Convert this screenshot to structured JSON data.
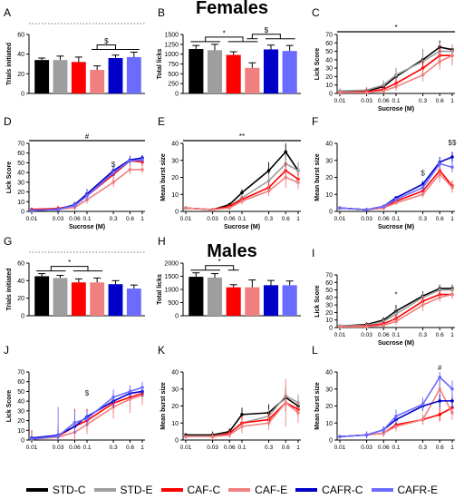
{
  "headings": {
    "females": "Females",
    "males": "Males"
  },
  "legend": [
    {
      "key": "stdc",
      "label": "STD-C",
      "color": "#000000"
    },
    {
      "key": "stde",
      "label": "STD-E",
      "color": "#9e9e9e"
    },
    {
      "key": "cafc",
      "label": "CAF-C",
      "color": "#ff0000"
    },
    {
      "key": "cafe",
      "label": "CAF-E",
      "color": "#f08080"
    },
    {
      "key": "cafrc",
      "label": "CAFR-C",
      "color": "#0000c8"
    },
    {
      "key": "cafre",
      "label": "CAFR-E",
      "color": "#6b6bff"
    }
  ],
  "chart_data": [
    {
      "panel": "A",
      "type": "bar",
      "ylabel": "Trials initiated",
      "ylim": [
        0,
        60
      ],
      "yticks": [
        0,
        20,
        40,
        60
      ],
      "reference_line": 62,
      "categories": [
        "STD-C",
        "STD-E",
        "CAF-C",
        "CAF-E",
        "CAFR-C",
        "CAFR-E"
      ],
      "values": [
        34,
        34,
        32,
        24,
        36,
        37
      ],
      "errors": [
        2,
        4,
        5,
        4,
        3,
        5
      ],
      "significance": [
        {
          "label": "$",
          "groups": [
            [
              3,
              4,
              5
            ],
            [
              3
            ]
          ]
        }
      ]
    },
    {
      "panel": "B",
      "type": "bar",
      "ylabel": "Total licks",
      "ylim": [
        0,
        1500
      ],
      "yticks": [
        0,
        250,
        500,
        750,
        1000,
        1250,
        1500
      ],
      "categories": [
        "STD-C",
        "STD-E",
        "CAF-C",
        "CAF-E",
        "CAFR-C",
        "CAFR-E"
      ],
      "values": [
        1130,
        1100,
        980,
        650,
        1120,
        1080
      ],
      "errors": [
        90,
        150,
        80,
        130,
        110,
        140
      ],
      "significance": [
        {
          "label": "*",
          "groups": [
            [
              0,
              1
            ],
            [
              2,
              3
            ]
          ]
        },
        {
          "label": "$",
          "groups": [
            [
              3
            ],
            [
              4,
              5
            ]
          ]
        }
      ]
    },
    {
      "panel": "C",
      "type": "line",
      "ylabel": "Lick Score",
      "xlabel": "Sucrose (M)",
      "ylim": [
        0,
        70
      ],
      "yticks": [
        0,
        10,
        20,
        30,
        40,
        50,
        60,
        70
      ],
      "x": [
        0.01,
        0.03,
        0.06,
        0.1,
        0.3,
        0.6,
        1
      ],
      "xtick_labels": [
        "0.01",
        "0.03",
        "0.06",
        "0.1",
        "0.3",
        "0.6",
        "1"
      ],
      "top_bar": {
        "label": "*"
      },
      "series": [
        {
          "key": "stdc",
          "values": [
            2,
            3,
            8,
            20,
            40,
            55,
            52
          ],
          "errors": [
            3,
            4,
            5,
            10,
            12,
            8,
            6
          ]
        },
        {
          "key": "stde",
          "values": [
            3,
            4,
            10,
            22,
            38,
            50,
            50
          ],
          "errors": [
            3,
            4,
            6,
            8,
            15,
            10,
            8
          ]
        },
        {
          "key": "cafc",
          "values": [
            1,
            2,
            5,
            12,
            30,
            45,
            45
          ],
          "errors": [
            2,
            3,
            4,
            6,
            10,
            12,
            10
          ]
        },
        {
          "key": "cafe",
          "values": [
            1,
            1,
            3,
            8,
            22,
            38,
            45
          ],
          "errors": [
            2,
            2,
            3,
            5,
            8,
            10,
            12
          ]
        }
      ]
    },
    {
      "panel": "D",
      "type": "line",
      "ylabel": "Lick Score",
      "xlabel": "Sucrose (M)",
      "ylim": [
        0,
        70
      ],
      "yticks": [
        0,
        10,
        20,
        30,
        40,
        50,
        60,
        70
      ],
      "x": [
        0.01,
        0.03,
        0.06,
        0.1,
        0.3,
        0.6,
        1
      ],
      "xtick_labels": [
        "0.01",
        "0.03",
        "0.06",
        "0.1",
        "0.3",
        "0.6",
        "1"
      ],
      "top_bar": {
        "label": "#"
      },
      "point_annotations": [
        {
          "label": "$",
          "x": 0.3,
          "y": 44
        }
      ],
      "series": [
        {
          "key": "cafc",
          "values": [
            2,
            3,
            6,
            16,
            38,
            52,
            51
          ],
          "errors": [
            2,
            3,
            3,
            5,
            6,
            5,
            4
          ]
        },
        {
          "key": "cafe",
          "values": [
            1,
            2,
            4,
            12,
            30,
            43,
            43
          ],
          "errors": [
            2,
            2,
            3,
            4,
            5,
            5,
            4
          ]
        },
        {
          "key": "cafrc",
          "values": [
            1,
            2,
            7,
            18,
            42,
            53,
            55
          ],
          "errors": [
            2,
            2,
            3,
            5,
            5,
            4,
            3
          ]
        },
        {
          "key": "cafre",
          "values": [
            1,
            2,
            6,
            16,
            40,
            52,
            53
          ],
          "errors": [
            2,
            2,
            3,
            5,
            5,
            4,
            3
          ]
        }
      ]
    },
    {
      "panel": "E",
      "type": "line",
      "ylabel": "Mean burst size",
      "xlabel": "Sucrose (M)",
      "ylim": [
        0,
        40
      ],
      "yticks": [
        0,
        10,
        20,
        30,
        40
      ],
      "x": [
        0.01,
        0.03,
        0.06,
        0.1,
        0.3,
        0.6,
        1
      ],
      "xtick_labels": [
        "0.01",
        "0.03",
        "0.06",
        "0.1",
        "0.3",
        "0.6",
        "1"
      ],
      "top_bar": {
        "label": "**"
      },
      "series": [
        {
          "key": "stdc",
          "values": [
            2,
            1,
            4,
            11,
            24,
            35,
            24
          ],
          "errors": [
            1,
            1,
            1,
            2,
            5,
            5,
            4
          ]
        },
        {
          "key": "stde",
          "values": [
            2,
            1,
            3,
            8,
            18,
            28,
            24
          ],
          "errors": [
            1,
            1,
            1,
            2,
            4,
            6,
            5
          ]
        },
        {
          "key": "cafc",
          "values": [
            2,
            1,
            3,
            7,
            14,
            24,
            19
          ],
          "errors": [
            1,
            1,
            1,
            2,
            3,
            5,
            4
          ]
        },
        {
          "key": "cafe",
          "values": [
            2,
            1,
            2,
            6,
            12,
            20,
            17
          ],
          "errors": [
            1,
            1,
            1,
            2,
            3,
            6,
            4
          ]
        }
      ]
    },
    {
      "panel": "F",
      "type": "line",
      "ylabel": "Mean burst size",
      "xlabel": "Sucrose (M)",
      "ylim": [
        0,
        40
      ],
      "yticks": [
        0,
        10,
        20,
        30,
        40
      ],
      "x": [
        0.01,
        0.03,
        0.06,
        0.1,
        0.3,
        0.6,
        1
      ],
      "xtick_labels": [
        "0.01",
        "0.03",
        "0.06",
        "0.1",
        "0.3",
        "0.6",
        "1"
      ],
      "point_annotations": [
        {
          "label": "$",
          "x": 0.3,
          "y": 20
        },
        {
          "label": "$$",
          "x": 1,
          "y": 38
        }
      ],
      "series": [
        {
          "key": "cafc",
          "values": [
            2,
            1,
            2,
            6,
            12,
            24,
            15
          ],
          "errors": [
            1,
            1,
            1,
            1,
            2,
            5,
            3
          ]
        },
        {
          "key": "cafe",
          "values": [
            2,
            1,
            2,
            5,
            10,
            22,
            14
          ],
          "errors": [
            1,
            1,
            1,
            1,
            2,
            5,
            3
          ]
        },
        {
          "key": "cafrc",
          "values": [
            2,
            1,
            3,
            8,
            16,
            29,
            32
          ],
          "errors": [
            1,
            1,
            1,
            1,
            2,
            3,
            3
          ]
        },
        {
          "key": "cafre",
          "values": [
            2,
            1,
            3,
            7,
            14,
            28,
            26
          ],
          "errors": [
            1,
            1,
            1,
            1,
            2,
            3,
            3
          ]
        }
      ]
    },
    {
      "panel": "G",
      "type": "bar",
      "ylabel": "Trials initiated",
      "ylim": [
        0,
        60
      ],
      "yticks": [
        0,
        20,
        40,
        60
      ],
      "reference_line": 62,
      "categories": [
        "STD-C",
        "STD-E",
        "CAF-C",
        "CAF-E",
        "CAFR-C",
        "CAFR-E"
      ],
      "values": [
        45,
        43,
        38,
        38,
        36,
        31
      ],
      "errors": [
        3,
        3,
        4,
        5,
        4,
        4
      ],
      "significance": [
        {
          "label": "*",
          "groups": [
            [
              0,
              1
            ],
            [
              2,
              3
            ]
          ]
        }
      ]
    },
    {
      "panel": "H",
      "type": "bar",
      "ylabel": "Total licks",
      "ylim": [
        0,
        2000
      ],
      "yticks": [
        0,
        500,
        1000,
        1500,
        2000
      ],
      "categories": [
        "STD-C",
        "STD-E",
        "CAF-C",
        "CAF-E",
        "CAFR-C",
        "CAFR-E"
      ],
      "values": [
        1480,
        1450,
        1080,
        1080,
        1160,
        1160
      ],
      "errors": [
        150,
        150,
        100,
        280,
        180,
        160
      ],
      "significance": [
        {
          "label": "*",
          "groups": [
            [
              0,
              1
            ],
            [
              2
            ]
          ]
        }
      ]
    },
    {
      "panel": "I",
      "type": "line",
      "ylabel": "Lick Score",
      "xlabel": "Sucrose (M)",
      "ylim": [
        0,
        70
      ],
      "yticks": [
        0,
        10,
        20,
        30,
        40,
        50,
        60,
        70
      ],
      "x": [
        0.01,
        0.03,
        0.06,
        0.1,
        0.3,
        0.6,
        1
      ],
      "xtick_labels": [
        "0.01",
        "0.03",
        "0.06",
        "0.1",
        "0.3",
        "0.6",
        "1"
      ],
      "point_annotations": [
        {
          "label": "*",
          "x": 0.1,
          "y": 38
        }
      ],
      "series": [
        {
          "key": "stdc",
          "values": [
            2,
            4,
            10,
            22,
            42,
            52,
            52
          ],
          "errors": [
            2,
            3,
            4,
            8,
            6,
            5,
            5
          ]
        },
        {
          "key": "stde",
          "values": [
            2,
            3,
            8,
            18,
            40,
            50,
            50
          ],
          "errors": [
            2,
            3,
            4,
            7,
            6,
            5,
            5
          ]
        },
        {
          "key": "cafc",
          "values": [
            1,
            2,
            5,
            12,
            35,
            44,
            44
          ],
          "errors": [
            2,
            2,
            3,
            5,
            6,
            5,
            5
          ]
        },
        {
          "key": "cafe",
          "values": [
            1,
            1,
            3,
            8,
            30,
            40,
            44
          ],
          "errors": [
            2,
            2,
            3,
            5,
            8,
            6,
            6
          ]
        }
      ]
    },
    {
      "panel": "J",
      "type": "line",
      "ylabel": "Lick Score",
      "ylim": [
        0,
        70
      ],
      "yticks": [
        0,
        10,
        20,
        30,
        40,
        50,
        60,
        70
      ],
      "x": [
        0.01,
        0.03,
        0.06,
        0.1,
        0.3,
        0.6,
        1
      ],
      "xtick_labels": [
        "0.01",
        "0.03",
        "0.06",
        "0.1",
        "0.3",
        "0.6",
        "1"
      ],
      "point_annotations": [
        {
          "label": "$",
          "x": 0.1,
          "y": 44
        }
      ],
      "series": [
        {
          "key": "cafc",
          "values": [
            2,
            4,
            14,
            20,
            38,
            44,
            48
          ],
          "errors": [
            8,
            10,
            18,
            12,
            10,
            12,
            8
          ]
        },
        {
          "key": "cafe",
          "values": [
            1,
            3,
            8,
            16,
            34,
            42,
            46
          ],
          "errors": [
            6,
            8,
            12,
            10,
            12,
            14,
            10
          ]
        },
        {
          "key": "cafrc",
          "values": [
            2,
            5,
            14,
            24,
            40,
            48,
            50
          ],
          "errors": [
            4,
            6,
            8,
            6,
            6,
            5,
            5
          ]
        },
        {
          "key": "cafre",
          "values": [
            1,
            4,
            18,
            22,
            44,
            50,
            54
          ],
          "errors": [
            6,
            30,
            12,
            8,
            8,
            6,
            6
          ]
        }
      ]
    },
    {
      "panel": "K",
      "type": "line",
      "ylabel": "Mean burst size",
      "ylim": [
        0,
        40
      ],
      "yticks": [
        0,
        10,
        20,
        30,
        40
      ],
      "x": [
        0.01,
        0.03,
        0.06,
        0.1,
        0.3,
        0.6,
        1
      ],
      "xtick_labels": [
        "0.01",
        "0.03",
        "0.06",
        "0.1",
        "0.3",
        "0.6",
        "1"
      ],
      "series": [
        {
          "key": "stdc",
          "values": [
            3,
            3,
            5,
            15,
            16,
            25,
            20
          ],
          "errors": [
            1,
            2,
            2,
            4,
            5,
            5,
            5
          ]
        },
        {
          "key": "stde",
          "values": [
            2,
            2,
            4,
            10,
            14,
            26,
            22
          ],
          "errors": [
            1,
            2,
            2,
            4,
            4,
            6,
            5
          ]
        },
        {
          "key": "cafc",
          "values": [
            2,
            2,
            4,
            10,
            12,
            22,
            18
          ],
          "errors": [
            1,
            2,
            2,
            4,
            4,
            5,
            4
          ]
        },
        {
          "key": "cafe",
          "values": [
            2,
            2,
            3,
            8,
            10,
            22,
            16
          ],
          "errors": [
            1,
            2,
            2,
            4,
            4,
            14,
            6
          ]
        }
      ]
    },
    {
      "panel": "L",
      "type": "line",
      "ylabel": "Mean burst size",
      "ylim": [
        0,
        40
      ],
      "yticks": [
        0,
        10,
        20,
        30,
        40
      ],
      "x": [
        0.01,
        0.03,
        0.06,
        0.1,
        0.3,
        0.6,
        1
      ],
      "xtick_labels": [
        "0.01",
        "0.03",
        "0.06",
        "0.1",
        "0.3",
        "0.6",
        "1"
      ],
      "point_annotations": [
        {
          "label": "#",
          "x": 0.6,
          "y": 42
        }
      ],
      "series": [
        {
          "key": "cafc",
          "values": [
            2,
            3,
            4,
            9,
            12,
            15,
            19
          ],
          "errors": [
            1,
            2,
            2,
            3,
            3,
            4,
            4
          ]
        },
        {
          "key": "cafe",
          "values": [
            2,
            3,
            4,
            8,
            12,
            30,
            16
          ],
          "errors": [
            1,
            2,
            2,
            3,
            3,
            6,
            4
          ]
        },
        {
          "key": "cafrc",
          "values": [
            2,
            3,
            6,
            12,
            20,
            23,
            23
          ],
          "errors": [
            1,
            2,
            2,
            3,
            3,
            4,
            4
          ]
        },
        {
          "key": "cafre",
          "values": [
            2,
            3,
            6,
            14,
            21,
            37,
            30
          ],
          "errors": [
            1,
            2,
            2,
            4,
            4,
            6,
            5
          ]
        }
      ]
    }
  ]
}
